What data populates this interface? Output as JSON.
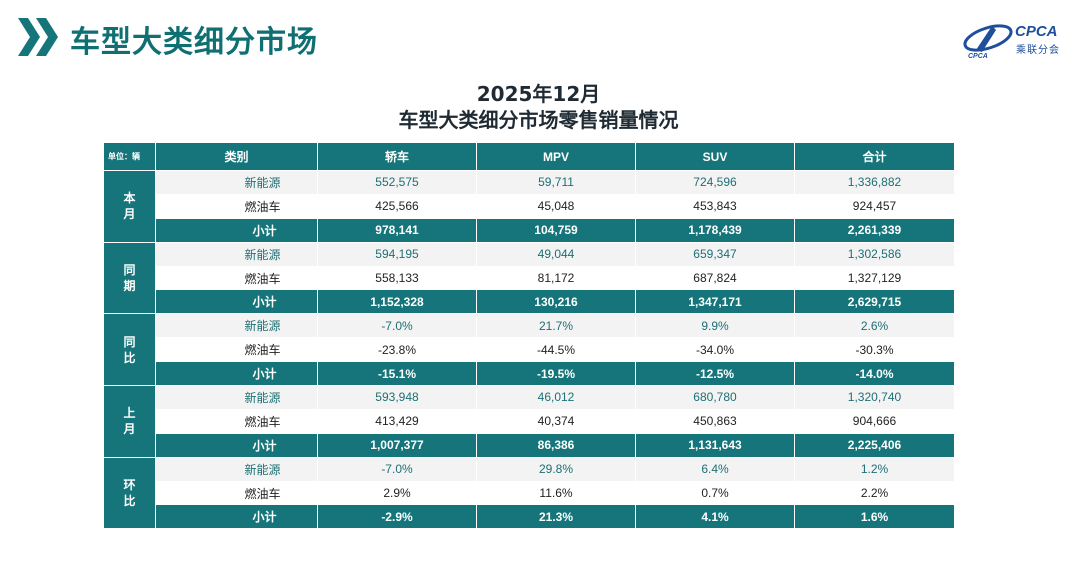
{
  "header": {
    "title": "车型大类细分市场",
    "logo_text": "CPCA",
    "logo_sub": "乘联分会"
  },
  "title": {
    "date": "2025年12月",
    "main": "车型大类细分市场零售销量情况"
  },
  "colors": {
    "accent": "#15757a",
    "nev_text": "#1d6f75",
    "row_light": "#f3f3f3"
  },
  "table": {
    "unit": "单位：辆",
    "columns": [
      "类别",
      "轿车",
      "MPV",
      "SUV",
      "合计"
    ],
    "groups": [
      {
        "label": [
          "本",
          "月"
        ],
        "rows": [
          {
            "cat": "新能源",
            "values": [
              "552,575",
              "59,711",
              "724,596",
              "1,336,882"
            ]
          },
          {
            "cat": "燃油车",
            "values": [
              "425,566",
              "45,048",
              "453,843",
              "924,457"
            ]
          },
          {
            "cat": "小计",
            "values": [
              "978,141",
              "104,759",
              "1,178,439",
              "2,261,339"
            ]
          }
        ]
      },
      {
        "label": [
          "同",
          "期"
        ],
        "rows": [
          {
            "cat": "新能源",
            "values": [
              "594,195",
              "49,044",
              "659,347",
              "1,302,586"
            ]
          },
          {
            "cat": "燃油车",
            "values": [
              "558,133",
              "81,172",
              "687,824",
              "1,327,129"
            ]
          },
          {
            "cat": "小计",
            "values": [
              "1,152,328",
              "130,216",
              "1,347,171",
              "2,629,715"
            ]
          }
        ]
      },
      {
        "label": [
          "同",
          "比"
        ],
        "rows": [
          {
            "cat": "新能源",
            "values": [
              "-7.0%",
              "21.7%",
              "9.9%",
              "2.6%"
            ]
          },
          {
            "cat": "燃油车",
            "values": [
              "-23.8%",
              "-44.5%",
              "-34.0%",
              "-30.3%"
            ]
          },
          {
            "cat": "小计",
            "values": [
              "-15.1%",
              "-19.5%",
              "-12.5%",
              "-14.0%"
            ]
          }
        ]
      },
      {
        "label": [
          "上",
          "月"
        ],
        "rows": [
          {
            "cat": "新能源",
            "values": [
              "593,948",
              "46,012",
              "680,780",
              "1,320,740"
            ]
          },
          {
            "cat": "燃油车",
            "values": [
              "413,429",
              "40,374",
              "450,863",
              "904,666"
            ]
          },
          {
            "cat": "小计",
            "values": [
              "1,007,377",
              "86,386",
              "1,131,643",
              "2,225,406"
            ]
          }
        ]
      },
      {
        "label": [
          "环",
          "比"
        ],
        "rows": [
          {
            "cat": "新能源",
            "values": [
              "-7.0%",
              "29.8%",
              "6.4%",
              "1.2%"
            ]
          },
          {
            "cat": "燃油车",
            "values": [
              "2.9%",
              "11.6%",
              "0.7%",
              "2.2%"
            ]
          },
          {
            "cat": "小计",
            "values": [
              "-2.9%",
              "21.3%",
              "4.1%",
              "1.6%"
            ]
          }
        ]
      }
    ]
  }
}
